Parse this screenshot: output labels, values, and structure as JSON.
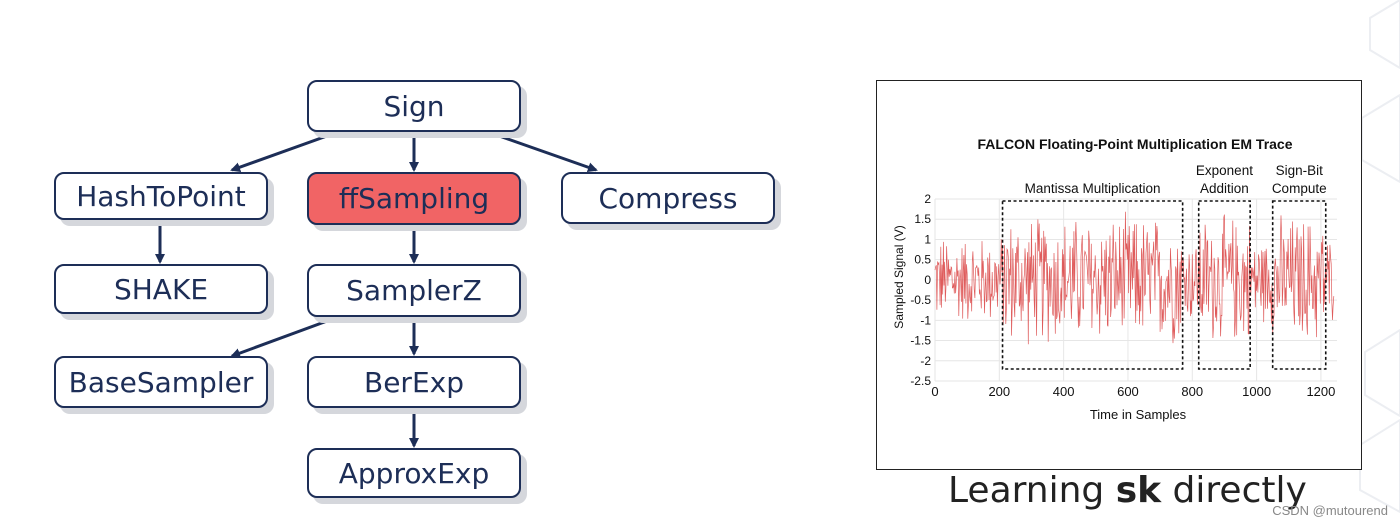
{
  "tree": {
    "nodes": [
      {
        "id": "sign",
        "label": "Sign"
      },
      {
        "id": "hashtopoint",
        "label": "HashToPoint"
      },
      {
        "id": "ffsampling",
        "label": "ffSampling"
      },
      {
        "id": "compress",
        "label": "Compress"
      },
      {
        "id": "shake",
        "label": "SHAKE"
      },
      {
        "id": "samplerz",
        "label": "SamplerZ"
      },
      {
        "id": "basesampler",
        "label": "BaseSampler"
      },
      {
        "id": "berexp",
        "label": "BerExp"
      },
      {
        "id": "approxexp",
        "label": "ApproxExp"
      }
    ],
    "highlight_color": "#f16465",
    "line_color": "#1d2e57"
  },
  "chart_data": {
    "type": "line",
    "title": "FALCON Floating-Point Multiplication EM Trace",
    "xlabel": "Time in Samples",
    "ylabel": "Sampled Signal (V)",
    "xlim": [
      0,
      1250
    ],
    "ylim": [
      -2.5,
      2
    ],
    "x_ticks": [
      "0",
      "200",
      "400",
      "600",
      "800",
      "1000",
      "1200"
    ],
    "y_ticks": [
      "2",
      "1.5",
      "1",
      "0.5",
      "0",
      "-0.5",
      "-1",
      "-1.5",
      "-2",
      "-2.5"
    ],
    "series_color": "#d94040",
    "regions": [
      {
        "label": "Mantissa Multiplication",
        "x_start": 210,
        "x_end": 770
      },
      {
        "label_lines": [
          "Exponent",
          "Addition"
        ],
        "x_start": 820,
        "x_end": 980
      },
      {
        "label_lines": [
          "Sign-Bit",
          "Compute"
        ],
        "x_start": 1050,
        "x_end": 1215
      }
    ],
    "grid": true
  },
  "caption": {
    "prefix": "Learning ",
    "bold": "sk",
    "suffix": " directly"
  },
  "watermark": "CSDN @mutourend"
}
